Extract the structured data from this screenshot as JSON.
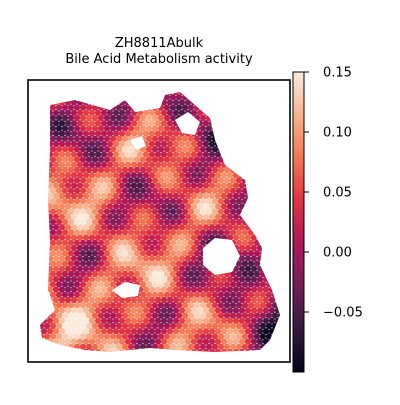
{
  "chart_data": {
    "type": "heatmap",
    "title_lines": [
      "ZH8811Abulk",
      "Bile Acid Metabolism activity"
    ],
    "xlabel": "",
    "ylabel": "",
    "colormap": "rocket",
    "colorbar": {
      "vmin": -0.1,
      "vmax": 0.15,
      "tick_values": [
        0.15,
        0.1,
        0.05,
        0.0,
        -0.05
      ],
      "tick_labels": [
        "0.15",
        "0.10",
        "0.05",
        "0.00",
        "−0.05"
      ]
    },
    "spots": {
      "layout": "hexagonal spatial spot grid",
      "grid_on": false
    },
    "colors": {
      "rocket": [
        "#03051a",
        "#35193e",
        "#701f57",
        "#ad1759",
        "#e13342",
        "#f37651",
        "#f6b48f",
        "#faebdd"
      ]
    }
  }
}
